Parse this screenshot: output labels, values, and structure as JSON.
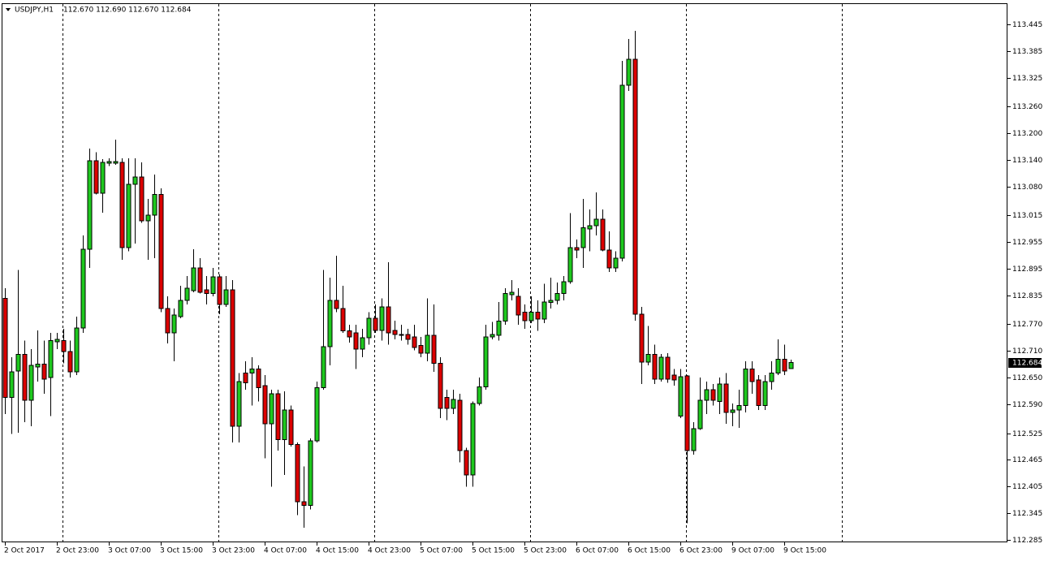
{
  "chart_data": {
    "type": "candlestick",
    "title": "USDJPY,H1",
    "subtitle": "112.670 112.690 112.670 112.684",
    "up_color": "#1ec81e",
    "down_color": "#dc0000",
    "grid": false,
    "last_price": 112.684,
    "ylim": [
      112.281,
      113.491
    ],
    "yticks": [
      113.445,
      113.385,
      113.325,
      {
        "value": 113.26,
        "label": "113.260"
      },
      {
        "value": 113.2,
        "label": "113.200"
      },
      {
        "value": 113.14,
        "label": "113.140"
      },
      {
        "value": 113.08,
        "label": "113.080"
      },
      113.015,
      112.955,
      112.895,
      112.835,
      {
        "value": 112.77,
        "label": "112.770"
      },
      {
        "value": 112.71,
        "label": "112.710"
      },
      {
        "value": 112.65,
        "label": "112.650"
      },
      {
        "value": 112.59,
        "label": "112.590"
      },
      112.525,
      112.465,
      112.405,
      112.345,
      112.285
    ],
    "categories": [
      "2 Oct 2017",
      null,
      null,
      null,
      null,
      null,
      null,
      null,
      "2 Oct 23:00",
      null,
      null,
      null,
      null,
      null,
      null,
      null,
      "3 Oct 07:00",
      null,
      null,
      null,
      null,
      null,
      null,
      null,
      "3 Oct 15:00",
      null,
      null,
      null,
      null,
      null,
      null,
      null,
      "3 Oct 23:00",
      null,
      null,
      null,
      null,
      null,
      null,
      null,
      "4 Oct 07:00",
      null,
      null,
      null,
      null,
      null,
      null,
      null,
      "4 Oct 15:00",
      null,
      null,
      null,
      null,
      null,
      null,
      null,
      "4 Oct 23:00",
      null,
      null,
      null,
      null,
      null,
      null,
      null,
      "5 Oct 07:00",
      null,
      null,
      null,
      null,
      null,
      null,
      null,
      "5 Oct 15:00",
      null,
      null,
      null,
      null,
      null,
      null,
      null,
      "5 Oct 23:00",
      null,
      null,
      null,
      null,
      null,
      null,
      null,
      "6 Oct 07:00",
      null,
      null,
      null,
      null,
      null,
      null,
      null,
      "6 Oct 15:00",
      null,
      null,
      null,
      null,
      null,
      null,
      null,
      "6 Oct 23:00",
      null,
      null,
      null,
      null,
      null,
      null,
      null,
      "9 Oct 07:00",
      null,
      null,
      null,
      null,
      null,
      null,
      null,
      "9 Oct 15:00",
      null
    ],
    "open": [
      112.828,
      112.605,
      112.665,
      112.702,
      112.599,
      112.674,
      112.68,
      112.65,
      112.731,
      112.733,
      112.709,
      112.663,
      112.762,
      112.939,
      113.138,
      113.065,
      113.133,
      113.133,
      113.135,
      112.943,
      113.085,
      113.102,
      113.003,
      113.016,
      113.062,
      112.806,
      112.751,
      112.787,
      112.824,
      112.846,
      112.897,
      112.848,
      112.839,
      112.877,
      112.815,
      112.848,
      112.541,
      112.66,
      112.66,
      112.669,
      112.632,
      112.546,
      112.614,
      112.51,
      112.577,
      112.499,
      112.371,
      112.362,
      112.508,
      112.627,
      112.72,
      112.824,
      112.806,
      112.755,
      112.751,
      112.714,
      112.74,
      112.784,
      112.756,
      112.809,
      112.756,
      112.747,
      112.747,
      112.742,
      112.722,
      112.705,
      112.745,
      112.682,
      112.605,
      112.581,
      112.599,
      112.486,
      112.431,
      112.592,
      112.629,
      112.742,
      112.745,
      112.777,
      112.837,
      112.833,
      112.797,
      112.778,
      112.797,
      112.782,
      112.819,
      112.824,
      112.839,
      112.866,
      112.943,
      112.943,
      112.985,
      112.992,
      113.007,
      112.937,
      112.897,
      112.919,
      113.308,
      113.367,
      112.793,
      112.685,
      112.702,
      112.647,
      112.696,
      112.656,
      112.563,
      112.654,
      112.486,
      112.535,
      112.599,
      112.623,
      112.596,
      112.636,
      112.572,
      112.577,
      112.587,
      112.669,
      112.645,
      112.587,
      112.641,
      112.66,
      112.691,
      112.67
    ],
    "high": [
      112.851,
      112.696,
      112.892,
      112.733,
      112.714,
      112.756,
      112.733,
      112.751,
      112.751,
      112.76,
      112.733,
      112.787,
      112.97,
      113.166,
      113.157,
      113.142,
      113.144,
      113.186,
      113.144,
      113.144,
      113.144,
      113.135,
      113.052,
      113.107,
      113.076,
      112.833,
      112.806,
      112.857,
      112.879,
      112.939,
      112.919,
      112.879,
      112.897,
      112.882,
      112.879,
      112.87,
      112.66,
      112.687,
      112.696,
      112.678,
      112.656,
      112.623,
      112.623,
      112.619,
      112.587,
      112.504,
      112.45,
      112.513,
      112.641,
      112.892,
      112.875,
      112.924,
      112.857,
      112.769,
      112.769,
      112.76,
      112.797,
      112.815,
      112.828,
      112.91,
      112.778,
      112.769,
      112.76,
      112.769,
      112.742,
      112.828,
      112.815,
      112.696,
      112.623,
      112.623,
      112.614,
      112.492,
      112.596,
      112.65,
      112.769,
      112.775,
      112.82,
      112.851,
      112.87,
      112.851,
      112.815,
      112.833,
      112.824,
      112.861,
      112.875,
      112.864,
      112.879,
      113.02,
      112.961,
      113.052,
      113.029,
      113.067,
      113.029,
      112.979,
      112.934,
      113.363,
      113.412,
      113.431,
      112.809,
      112.766,
      112.724,
      112.703,
      112.705,
      112.669,
      112.669,
      112.656,
      112.55,
      112.65,
      112.641,
      112.636,
      112.65,
      112.66,
      112.592,
      112.623,
      112.687,
      112.687,
      112.656,
      112.656,
      112.687,
      112.736,
      112.724,
      112.69
    ],
    "low": [
      112.568,
      112.523,
      112.526,
      112.55,
      112.541,
      112.641,
      112.614,
      112.563,
      112.714,
      112.682,
      112.65,
      112.656,
      112.751,
      112.897,
      113.062,
      113.021,
      113.126,
      113.129,
      112.915,
      112.934,
      112.952,
      112.998,
      112.915,
      112.919,
      112.797,
      112.727,
      112.687,
      112.784,
      112.815,
      112.842,
      112.839,
      112.815,
      112.833,
      112.793,
      112.809,
      112.504,
      112.504,
      112.623,
      112.587,
      112.596,
      112.468,
      112.404,
      112.486,
      112.431,
      112.495,
      112.34,
      112.312,
      112.353,
      112.504,
      112.623,
      112.678,
      112.797,
      112.751,
      112.729,
      112.669,
      112.696,
      112.724,
      112.751,
      112.733,
      112.724,
      112.736,
      112.733,
      112.724,
      112.711,
      112.696,
      112.687,
      112.663,
      112.559,
      112.554,
      112.568,
      112.459,
      112.404,
      112.404,
      112.587,
      112.623,
      112.736,
      112.733,
      112.769,
      112.824,
      112.769,
      112.76,
      112.773,
      112.755,
      112.773,
      112.806,
      112.815,
      112.824,
      112.861,
      112.919,
      112.897,
      112.934,
      112.97,
      112.934,
      112.888,
      112.888,
      112.912,
      113.295,
      112.778,
      112.636,
      112.678,
      112.636,
      112.641,
      112.638,
      112.632,
      112.559,
      112.322,
      112.477,
      112.532,
      112.568,
      112.587,
      112.568,
      112.546,
      112.541,
      112.537,
      112.572,
      112.614,
      112.577,
      112.577,
      112.623,
      112.656,
      112.656,
      112.67
    ],
    "close": [
      112.605,
      112.663,
      112.702,
      112.599,
      112.678,
      112.68,
      112.647,
      112.733,
      112.736,
      112.709,
      112.663,
      112.762,
      112.939,
      113.138,
      113.065,
      113.135,
      113.136,
      113.136,
      112.943,
      113.085,
      113.102,
      113.003,
      113.016,
      113.062,
      112.806,
      112.751,
      112.791,
      112.824,
      112.851,
      112.897,
      112.842,
      112.839,
      112.877,
      112.815,
      112.848,
      112.541,
      112.641,
      112.638,
      112.669,
      112.627,
      112.546,
      112.614,
      112.51,
      112.577,
      112.499,
      112.371,
      112.362,
      112.508,
      112.627,
      112.72,
      112.824,
      112.806,
      112.755,
      112.742,
      112.714,
      112.74,
      112.784,
      112.756,
      112.809,
      112.751,
      112.747,
      112.745,
      112.736,
      112.718,
      112.705,
      112.745,
      112.682,
      112.581,
      112.581,
      112.601,
      112.486,
      112.431,
      112.592,
      112.629,
      112.742,
      112.747,
      112.777,
      112.839,
      112.842,
      112.791,
      112.778,
      112.797,
      112.782,
      112.82,
      112.824,
      112.839,
      112.866,
      112.943,
      112.937,
      112.987,
      112.992,
      113.007,
      112.937,
      112.897,
      112.919,
      113.308,
      113.367,
      112.793,
      112.685,
      112.702,
      112.647,
      112.696,
      112.647,
      112.645,
      112.652,
      112.486,
      112.535,
      112.599,
      112.623,
      112.599,
      112.636,
      112.572,
      112.577,
      112.587,
      112.669,
      112.641,
      112.587,
      112.641,
      112.66,
      112.691,
      112.665,
      112.684
    ]
  }
}
